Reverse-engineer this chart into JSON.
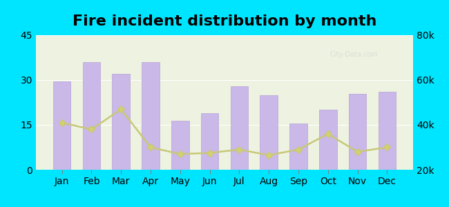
{
  "title": "Fire incident distribution by month",
  "months": [
    "Jan",
    "Feb",
    "Mar",
    "Apr",
    "May",
    "Jun",
    "Jul",
    "Aug",
    "Sep",
    "Oct",
    "Nov",
    "Dec"
  ],
  "tremont_values": [
    29.5,
    36,
    32,
    36,
    16.5,
    19,
    28,
    25,
    15.5,
    20,
    25.5,
    26
  ],
  "mississippi_values": [
    41000,
    38000,
    47000,
    30000,
    27000,
    27500,
    29000,
    26500,
    29000,
    36000,
    28000,
    30000
  ],
  "bar_color": "#c9b8e8",
  "bar_edge_color": "#b8a0d8",
  "line_color": "#c8c878",
  "line_marker": "D",
  "line_marker_color": "#d4d070",
  "left_ylim": [
    0,
    45
  ],
  "right_ylim": [
    20000,
    80000
  ],
  "left_yticks": [
    0,
    15,
    30,
    45
  ],
  "right_yticks": [
    20000,
    40000,
    60000,
    80000
  ],
  "right_yticklabels": [
    "20k",
    "40k",
    "60k",
    "80k"
  ],
  "background_top": "#e8f0d8",
  "background_bottom": "#f0f8e8",
  "outer_background": "#00e5ff",
  "title_fontsize": 16,
  "axis_fontsize": 10,
  "legend_fontsize": 10
}
